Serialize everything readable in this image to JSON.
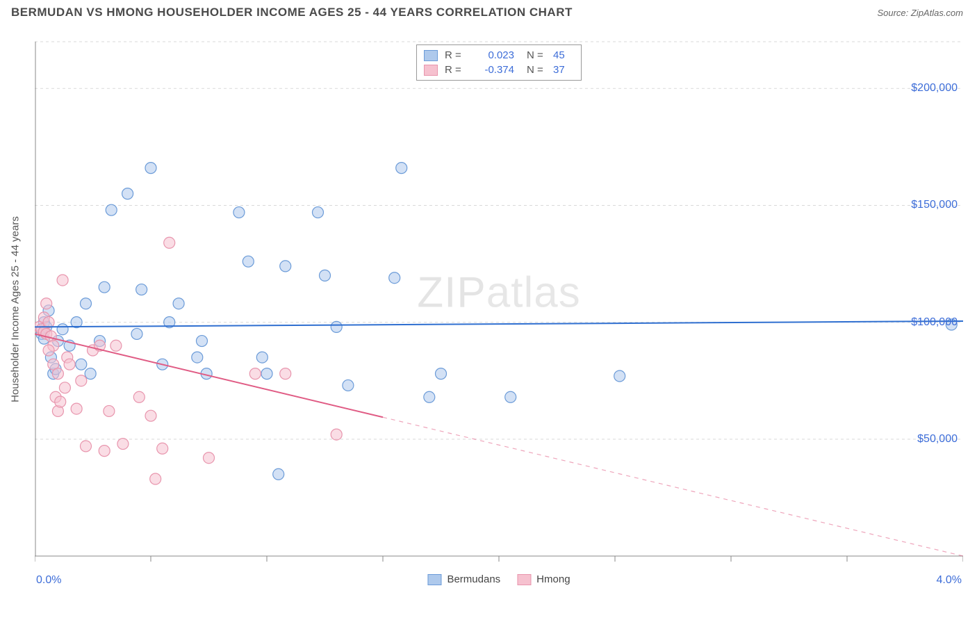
{
  "header": {
    "title": "BERMUDAN VS HMONG HOUSEHOLDER INCOME AGES 25 - 44 YEARS CORRELATION CHART",
    "source_prefix": "Source: ",
    "source_name": "ZipAtlas.com"
  },
  "watermark": {
    "bold": "ZIP",
    "light": "atlas"
  },
  "chart": {
    "type": "scatter-regression",
    "y_axis_label": "Householder Income Ages 25 - 44 years",
    "x_range": [
      0.0,
      4.0
    ],
    "y_range": [
      0,
      220000
    ],
    "x_min_label": "0.0%",
    "x_max_label": "4.0%",
    "y_ticks": [
      {
        "value": 50000,
        "label": "$50,000"
      },
      {
        "value": 100000,
        "label": "$100,000"
      },
      {
        "value": 150000,
        "label": "$150,000"
      },
      {
        "value": 200000,
        "label": "$200,000"
      }
    ],
    "x_tick_positions": [
      0.0,
      0.5,
      1.0,
      1.5,
      2.0,
      2.5,
      3.0,
      3.5,
      4.0
    ],
    "grid_color": "#d9d9d9",
    "axis_color": "#888888",
    "background_color": "#ffffff",
    "marker_radius": 8,
    "marker_stroke_width": 1.2,
    "line_width": 2,
    "axis_label_color": "#3d6dd8",
    "series": [
      {
        "name": "Bermudans",
        "fill": "#aec9ec",
        "stroke": "#6b9bd8",
        "line_color": "#2f6fd0",
        "r": 0.023,
        "n": 45,
        "regression": {
          "x1": 0.0,
          "y1": 98000,
          "x2": 4.0,
          "y2": 100500,
          "dashed_from_x": null
        },
        "points": [
          [
            0.03,
            95000
          ],
          [
            0.04,
            100000
          ],
          [
            0.04,
            93000
          ],
          [
            0.05,
            98000
          ],
          [
            0.06,
            105000
          ],
          [
            0.07,
            85000
          ],
          [
            0.08,
            78000
          ],
          [
            0.09,
            80000
          ],
          [
            0.1,
            92000
          ],
          [
            0.12,
            97000
          ],
          [
            0.15,
            90000
          ],
          [
            0.18,
            100000
          ],
          [
            0.2,
            82000
          ],
          [
            0.22,
            108000
          ],
          [
            0.24,
            78000
          ],
          [
            0.28,
            92000
          ],
          [
            0.3,
            115000
          ],
          [
            0.33,
            148000
          ],
          [
            0.4,
            155000
          ],
          [
            0.44,
            95000
          ],
          [
            0.46,
            114000
          ],
          [
            0.5,
            166000
          ],
          [
            0.58,
            100000
          ],
          [
            0.62,
            108000
          ],
          [
            0.7,
            85000
          ],
          [
            0.72,
            92000
          ],
          [
            0.74,
            78000
          ],
          [
            0.88,
            147000
          ],
          [
            0.92,
            126000
          ],
          [
            0.98,
            85000
          ],
          [
            1.0,
            78000
          ],
          [
            1.05,
            35000
          ],
          [
            1.08,
            124000
          ],
          [
            1.22,
            147000
          ],
          [
            1.25,
            120000
          ],
          [
            1.3,
            98000
          ],
          [
            1.35,
            73000
          ],
          [
            1.55,
            119000
          ],
          [
            1.58,
            166000
          ],
          [
            1.7,
            68000
          ],
          [
            1.75,
            78000
          ],
          [
            2.05,
            68000
          ],
          [
            2.52,
            77000
          ],
          [
            3.95,
            99000
          ],
          [
            0.55,
            82000
          ]
        ]
      },
      {
        "name": "Hmong",
        "fill": "#f6c1cf",
        "stroke": "#e895ad",
        "line_color": "#e05b84",
        "r": -0.374,
        "n": 37,
        "regression": {
          "x1": 0.0,
          "y1": 95000,
          "x2": 4.0,
          "y2": 0,
          "dashed_from_x": 1.5
        },
        "points": [
          [
            0.02,
            98000
          ],
          [
            0.03,
            97000
          ],
          [
            0.04,
            96000
          ],
          [
            0.04,
            102000
          ],
          [
            0.05,
            95000
          ],
          [
            0.05,
            108000
          ],
          [
            0.06,
            100000
          ],
          [
            0.07,
            94000
          ],
          [
            0.08,
            90000
          ],
          [
            0.08,
            82000
          ],
          [
            0.09,
            68000
          ],
          [
            0.1,
            62000
          ],
          [
            0.1,
            78000
          ],
          [
            0.11,
            66000
          ],
          [
            0.12,
            118000
          ],
          [
            0.13,
            72000
          ],
          [
            0.14,
            85000
          ],
          [
            0.15,
            82000
          ],
          [
            0.18,
            63000
          ],
          [
            0.2,
            75000
          ],
          [
            0.22,
            47000
          ],
          [
            0.25,
            88000
          ],
          [
            0.28,
            90000
          ],
          [
            0.3,
            45000
          ],
          [
            0.32,
            62000
          ],
          [
            0.35,
            90000
          ],
          [
            0.38,
            48000
          ],
          [
            0.45,
            68000
          ],
          [
            0.5,
            60000
          ],
          [
            0.52,
            33000
          ],
          [
            0.55,
            46000
          ],
          [
            0.58,
            134000
          ],
          [
            0.75,
            42000
          ],
          [
            0.95,
            78000
          ],
          [
            1.08,
            78000
          ],
          [
            1.3,
            52000
          ],
          [
            0.06,
            88000
          ]
        ]
      }
    ],
    "legend_top": {
      "r_label": "R  =",
      "n_label": "N  =",
      "r_value_color": "#3d6dd8",
      "n_value_color": "#3d6dd8"
    }
  }
}
